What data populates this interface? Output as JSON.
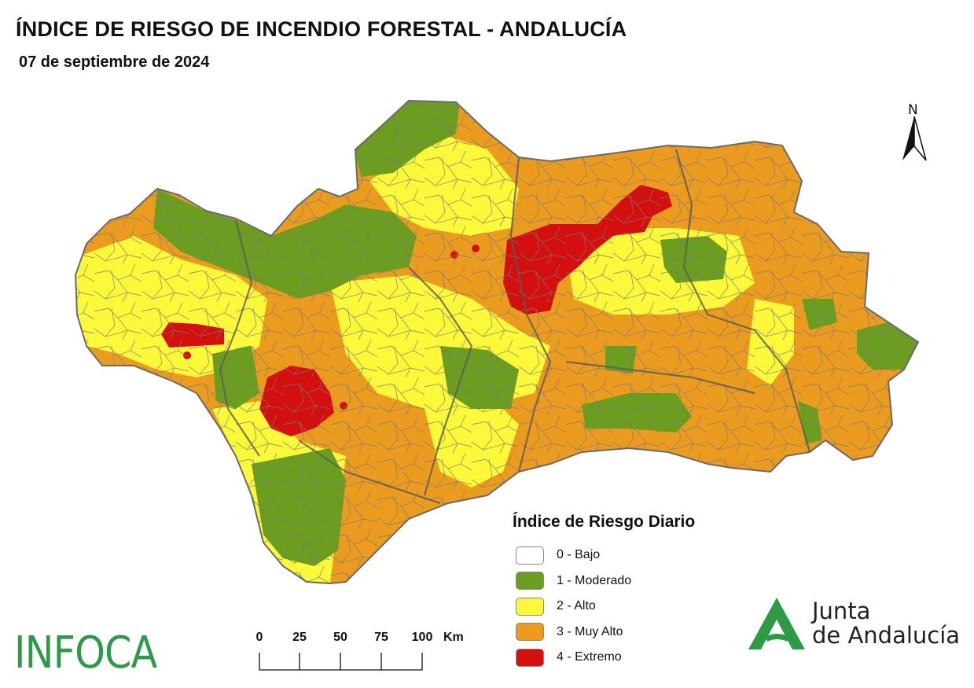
{
  "map": {
    "title": "ÍNDICE DE RIESGO DE INCENDIO FORESTAL - ANDALUCÍA",
    "date": "07 de septiembre de 2024",
    "north_label": "N"
  },
  "legend": {
    "title": "Índice de Riesgo Diario",
    "items": [
      {
        "label": "0 - Bajo",
        "color": "#ffffff"
      },
      {
        "label": "1 - Moderado",
        "color": "#6b9e1f"
      },
      {
        "label": "2 - Alto",
        "color": "#fbf93a"
      },
      {
        "label": "3 - Muy Alto",
        "color": "#eb9b1e"
      },
      {
        "label": "4 - Extremo",
        "color": "#d40f0f"
      }
    ]
  },
  "scale_bar": {
    "ticks": [
      "0",
      "25",
      "50",
      "75",
      "100"
    ],
    "unit": "Km"
  },
  "logos": {
    "infoca": "INFOCA",
    "junta_line1": "Junta",
    "junta_line2": "de Andalucía"
  },
  "colors": {
    "moderado": "#6b9e1f",
    "alto": "#fbf93a",
    "muy_alto": "#eb9b1e",
    "extremo": "#d40f0f",
    "border": "#707070",
    "junta_green": "#2e9a47"
  }
}
